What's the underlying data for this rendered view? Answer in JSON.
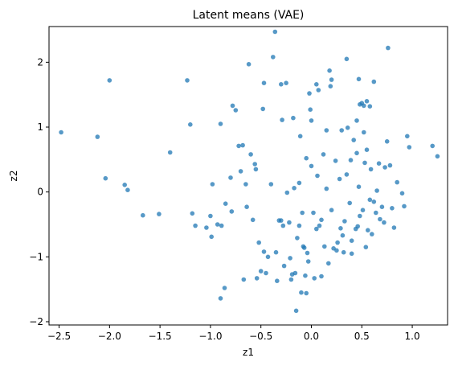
{
  "chart_data": {
    "type": "scatter",
    "title": "Latent means (VAE)",
    "xlabel": "z1",
    "ylabel": "z2",
    "xlim": [
      -2.6,
      1.35
    ],
    "ylim": [
      -2.05,
      2.55
    ],
    "xticks": [
      -2.5,
      -2.0,
      -1.5,
      -1.0,
      -0.5,
      0.0,
      0.5,
      1.0
    ],
    "xtick_labels": [
      "−2.5",
      "−2.0",
      "−1.5",
      "−1.0",
      "−0.5",
      "0.0",
      "0.5",
      "1.0"
    ],
    "yticks": [
      -2,
      -1,
      0,
      1,
      2
    ],
    "ytick_labels": [
      "−2",
      "−1",
      "0",
      "1",
      "2"
    ],
    "grid": false,
    "marker_color": "#1f77b4",
    "marker_alpha": 0.75,
    "points": [
      [
        -2.48,
        0.92
      ],
      [
        -2.12,
        0.85
      ],
      [
        -2.0,
        1.72
      ],
      [
        -2.04,
        0.21
      ],
      [
        -1.85,
        0.11
      ],
      [
        -1.82,
        0.03
      ],
      [
        -1.67,
        -0.36
      ],
      [
        -1.51,
        -0.34
      ],
      [
        -1.4,
        0.61
      ],
      [
        -1.23,
        1.72
      ],
      [
        -1.2,
        1.04
      ],
      [
        -1.18,
        -0.33
      ],
      [
        -1.15,
        -0.52
      ],
      [
        -1.04,
        -0.55
      ],
      [
        -1.0,
        -0.37
      ],
      [
        -0.99,
        -0.69
      ],
      [
        -0.98,
        0.12
      ],
      [
        -0.93,
        -0.5
      ],
      [
        -0.9,
        1.05
      ],
      [
        -0.89,
        -0.52
      ],
      [
        -0.9,
        -1.64
      ],
      [
        -0.86,
        -1.48
      ],
      [
        -0.85,
        -0.18
      ],
      [
        -0.79,
        -0.3
      ],
      [
        -0.78,
        1.33
      ],
      [
        -0.75,
        1.26
      ],
      [
        -0.72,
        0.71
      ],
      [
        -0.68,
        0.72
      ],
      [
        -0.67,
        -1.35
      ],
      [
        -0.65,
        0.12
      ],
      [
        -0.64,
        -0.23
      ],
      [
        -0.62,
        1.97
      ],
      [
        -0.6,
        0.58
      ],
      [
        -0.58,
        -0.43
      ],
      [
        -0.56,
        0.43
      ],
      [
        -0.54,
        -1.33
      ],
      [
        -0.52,
        -0.78
      ],
      [
        -0.5,
        -1.22
      ],
      [
        -0.48,
        1.28
      ],
      [
        -0.47,
        1.68
      ],
      [
        -0.47,
        -0.92
      ],
      [
        -0.45,
        -1.25
      ],
      [
        -0.43,
        -1.0
      ],
      [
        -0.4,
        0.12
      ],
      [
        -0.38,
        2.08
      ],
      [
        -0.36,
        2.47
      ],
      [
        -0.35,
        -0.93
      ],
      [
        -0.34,
        -1.37
      ],
      [
        -0.32,
        -0.44
      ],
      [
        -0.3,
        1.66
      ],
      [
        -0.29,
        1.11
      ],
      [
        -0.28,
        -0.52
      ],
      [
        -0.27,
        -1.14
      ],
      [
        -0.25,
        1.68
      ],
      [
        -0.24,
        -0.01
      ],
      [
        -0.22,
        -0.47
      ],
      [
        -0.21,
        -1.02
      ],
      [
        -0.2,
        -1.35
      ],
      [
        -0.19,
        -1.27
      ],
      [
        -0.18,
        1.14
      ],
      [
        -0.17,
        0.06
      ],
      [
        -0.16,
        -1.25
      ],
      [
        -0.15,
        -1.83
      ],
      [
        -0.14,
        -0.71
      ],
      [
        -0.12,
        -0.52
      ],
      [
        -0.11,
        0.86
      ],
      [
        -0.1,
        -1.55
      ],
      [
        -0.09,
        -0.32
      ],
      [
        -0.08,
        -0.84
      ],
      [
        -0.07,
        -0.86
      ],
      [
        -0.06,
        -1.29
      ],
      [
        -0.05,
        -1.56
      ],
      [
        -0.04,
        -0.94
      ],
      [
        -0.03,
        -1.07
      ],
      [
        -0.02,
        1.52
      ],
      [
        -0.01,
        1.27
      ],
      [
        0.0,
        1.1
      ],
      [
        0.0,
        0.4
      ],
      [
        0.02,
        -0.32
      ],
      [
        0.03,
        -1.33
      ],
      [
        0.05,
        1.66
      ],
      [
        0.06,
        0.25
      ],
      [
        0.07,
        1.57
      ],
      [
        0.08,
        -0.52
      ],
      [
        0.1,
        -1.3
      ],
      [
        0.12,
        0.58
      ],
      [
        0.13,
        -0.84
      ],
      [
        0.15,
        0.95
      ],
      [
        0.17,
        -1.1
      ],
      [
        0.19,
        1.63
      ],
      [
        0.2,
        1.73
      ],
      [
        0.22,
        -0.87
      ],
      [
        0.24,
        0.48
      ],
      [
        0.26,
        -0.78
      ],
      [
        0.28,
        0.2
      ],
      [
        0.3,
        0.95
      ],
      [
        0.31,
        -0.67
      ],
      [
        0.32,
        -0.93
      ],
      [
        0.35,
        0.27
      ],
      [
        0.36,
        0.99
      ],
      [
        0.38,
        -0.17
      ],
      [
        0.39,
        0.49
      ],
      [
        0.4,
        -0.95
      ],
      [
        0.42,
        0.8
      ],
      [
        0.44,
        -0.57
      ],
      [
        0.45,
        1.1
      ],
      [
        0.46,
        -0.53
      ],
      [
        0.47,
        0.08
      ],
      [
        0.48,
        1.35
      ],
      [
        0.5,
        1.37
      ],
      [
        0.51,
        -0.28
      ],
      [
        0.52,
        0.92
      ],
      [
        0.53,
        0.45
      ],
      [
        0.54,
        -0.85
      ],
      [
        0.55,
        1.4
      ],
      [
        0.56,
        -0.59
      ],
      [
        0.58,
        1.32
      ],
      [
        0.59,
        0.35
      ],
      [
        0.6,
        -0.65
      ],
      [
        0.62,
        1.7
      ],
      [
        0.64,
        -0.32
      ],
      [
        0.65,
        0.02
      ],
      [
        0.67,
        0.44
      ],
      [
        0.68,
        -0.42
      ],
      [
        0.7,
        -0.23
      ],
      [
        0.72,
        -0.47
      ],
      [
        0.73,
        0.38
      ],
      [
        0.75,
        0.78
      ],
      [
        0.76,
        2.22
      ],
      [
        0.78,
        0.41
      ],
      [
        0.8,
        -0.25
      ],
      [
        0.82,
        -0.55
      ],
      [
        0.85,
        0.15
      ],
      [
        0.9,
        -0.02
      ],
      [
        0.92,
        -0.22
      ],
      [
        0.95,
        0.86
      ],
      [
        0.97,
        0.69
      ],
      [
        1.2,
        0.71
      ],
      [
        1.25,
        0.55
      ],
      [
        0.35,
        2.05
      ],
      [
        0.18,
        1.87
      ],
      [
        0.47,
        1.74
      ],
      [
        0.52,
        1.33
      ],
      [
        0.45,
        0.6
      ],
      [
        0.33,
        -0.45
      ],
      [
        0.29,
        -0.56
      ],
      [
        0.25,
        -0.9
      ],
      [
        0.4,
        -0.75
      ],
      [
        0.55,
        0.65
      ],
      [
        0.62,
        -0.15
      ],
      [
        -0.05,
        0.52
      ],
      [
        -0.12,
        0.14
      ],
      [
        -0.3,
        -0.44
      ],
      [
        0.05,
        -0.57
      ],
      [
        0.1,
        -0.43
      ],
      [
        0.15,
        0.05
      ],
      [
        -0.55,
        0.35
      ],
      [
        -0.7,
        0.32
      ],
      [
        -0.8,
        0.22
      ],
      [
        0.58,
        -0.12
      ],
      [
        0.48,
        -0.37
      ],
      [
        0.2,
        -0.28
      ]
    ]
  }
}
